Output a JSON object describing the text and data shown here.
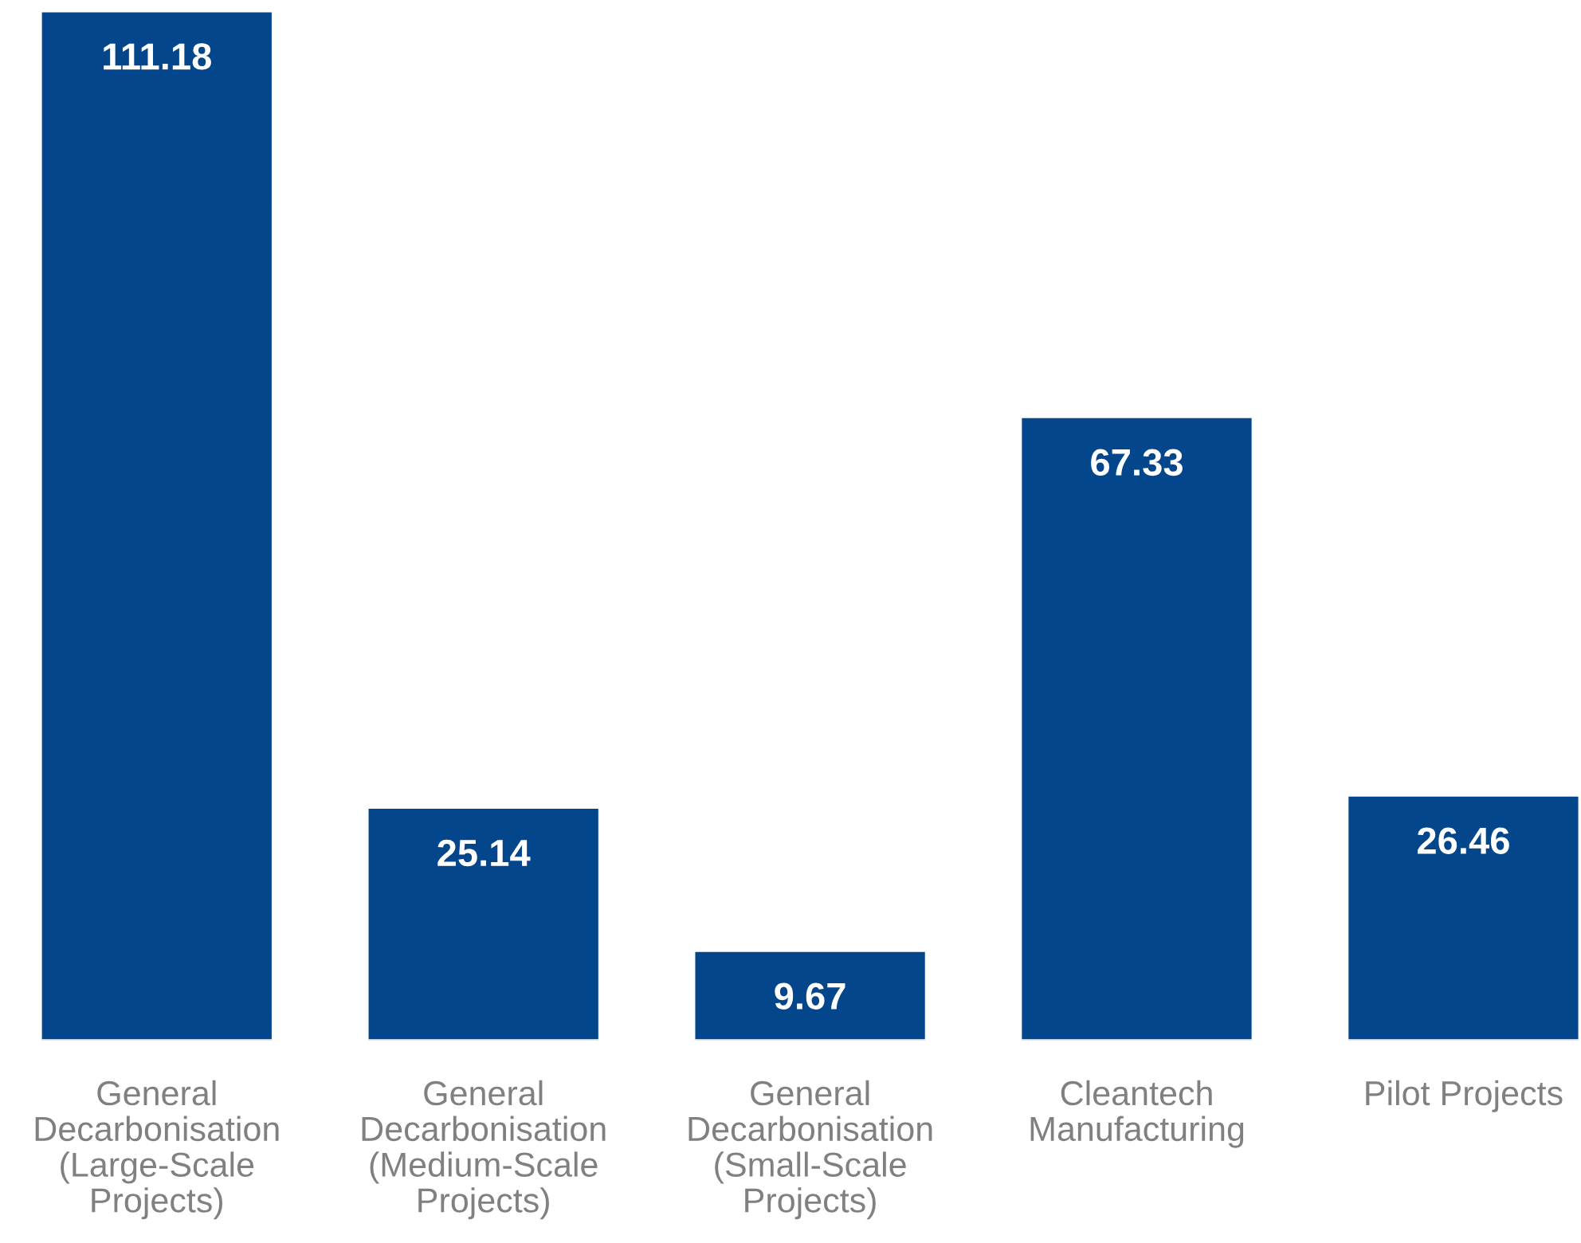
{
  "chart_data": {
    "type": "bar",
    "categories": [
      "General\nDecarbonisation\n(Large-Scale\nProjects)",
      "General\nDecarbonisation\n(Medium-Scale\nProjects)",
      "General\nDecarbonisation\n(Small-Scale\nProjects)",
      "Cleantech\nManufacturing",
      "Pilot Projects"
    ],
    "values": [
      111.18,
      25.14,
      9.67,
      67.33,
      26.46
    ],
    "color": "#03468c",
    "data_labels": true
  }
}
